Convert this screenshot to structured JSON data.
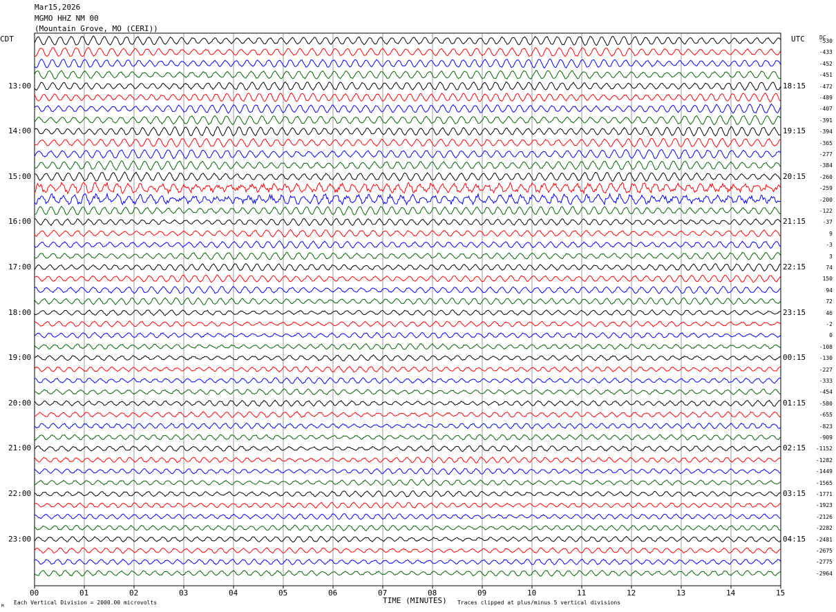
{
  "header": {
    "date": "Mar15,2026",
    "station": "MGMO HHZ NM 00",
    "location": "(Mountain Grove, MO (CERI))"
  },
  "axes": {
    "left_zone_label": "CDT",
    "right_zone_label": "UTC",
    "dc_label": "DC",
    "x_title": "TIME (MINUTES)",
    "footer_left": "Each Vertical Division = 2000.00 microvolts",
    "footer_right": "Traces clipped at plus/minus 5 vertical divisions",
    "corner_mark": "M"
  },
  "colors": {
    "trace_cycle": [
      "#000000",
      "#ff0000",
      "#0000ff",
      "#006400"
    ],
    "grid": "#000000",
    "background": "#ffffff"
  },
  "chart_data": {
    "type": "line",
    "title": "MGMO HHZ NM 00",
    "xlabel": "TIME (MINUTES)",
    "xlim": [
      0,
      15
    ],
    "x_ticks": [
      "00",
      "01",
      "02",
      "03",
      "04",
      "05",
      "06",
      "07",
      "08",
      "09",
      "10",
      "11",
      "12",
      "13",
      "14",
      "15"
    ],
    "minutes_per_line": 15,
    "line_count": 48,
    "left_time_labels": [
      {
        "line": 4,
        "text": "13:00"
      },
      {
        "line": 8,
        "text": "14:00"
      },
      {
        "line": 12,
        "text": "15:00"
      },
      {
        "line": 16,
        "text": "16:00"
      },
      {
        "line": 20,
        "text": "17:00"
      },
      {
        "line": 24,
        "text": "18:00"
      },
      {
        "line": 28,
        "text": "19:00"
      },
      {
        "line": 32,
        "text": "20:00"
      },
      {
        "line": 36,
        "text": "21:00"
      },
      {
        "line": 40,
        "text": "22:00"
      },
      {
        "line": 44,
        "text": "23:00"
      }
    ],
    "right_time_labels": [
      {
        "line": 4,
        "text": "18:15"
      },
      {
        "line": 8,
        "text": "19:15"
      },
      {
        "line": 12,
        "text": "20:15"
      },
      {
        "line": 16,
        "text": "21:15"
      },
      {
        "line": 20,
        "text": "22:15"
      },
      {
        "line": 24,
        "text": "23:15"
      },
      {
        "line": 28,
        "text": "00:15"
      },
      {
        "line": 32,
        "text": "01:15"
      },
      {
        "line": 36,
        "text": "02:15"
      },
      {
        "line": 40,
        "text": "03:15"
      },
      {
        "line": 44,
        "text": "04:15"
      }
    ],
    "dc_offsets": [
      "-530",
      "-433",
      "-452",
      "-451",
      "-472",
      "-489",
      "-407",
      "-391",
      "-394",
      "-365",
      "-277",
      "-384",
      "-260",
      "-259",
      "-200",
      "-122",
      "-37",
      "9",
      "-3",
      "3",
      "74",
      "150",
      "94",
      "72",
      "46",
      "-2",
      "0",
      "-108",
      "-130",
      "-227",
      "-333",
      "-454",
      "-580",
      "-655",
      "-823",
      "-909",
      "-1152",
      "-1282",
      "-1449",
      "-1565",
      "-1771",
      "-1923",
      "-2126",
      "-2282",
      "-2481",
      "-2675",
      "-2775",
      "-2964"
    ],
    "microvolts_per_division": 2000.0,
    "clip_divisions": 5
  }
}
